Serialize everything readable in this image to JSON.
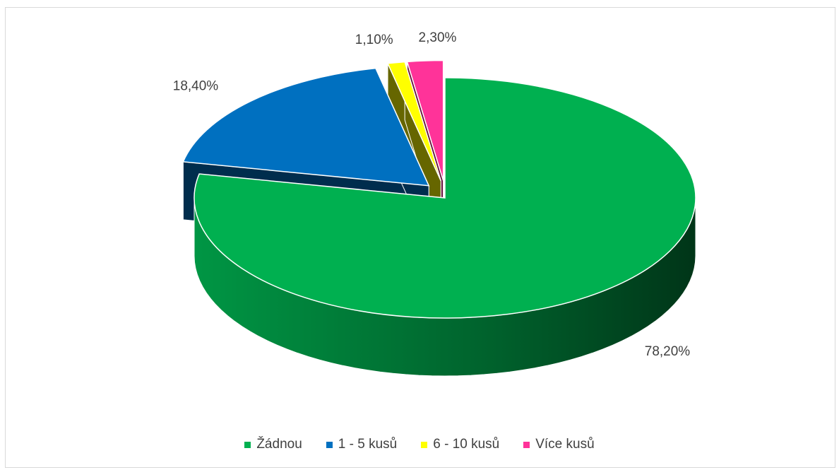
{
  "chart_data": {
    "type": "pie",
    "style": "3d-exploded",
    "categories": [
      "Žádnou",
      "1 - 5 kusů",
      "6 - 10 kusů",
      "Více kusů"
    ],
    "values": [
      78.2,
      18.4,
      1.1,
      2.3
    ],
    "labels": [
      "78,20%",
      "18,40%",
      "1,10%",
      "2,30%"
    ],
    "colors": [
      "#00B050",
      "#0070C0",
      "#FFFF00",
      "#FF3399"
    ],
    "legend_position": "bottom"
  }
}
